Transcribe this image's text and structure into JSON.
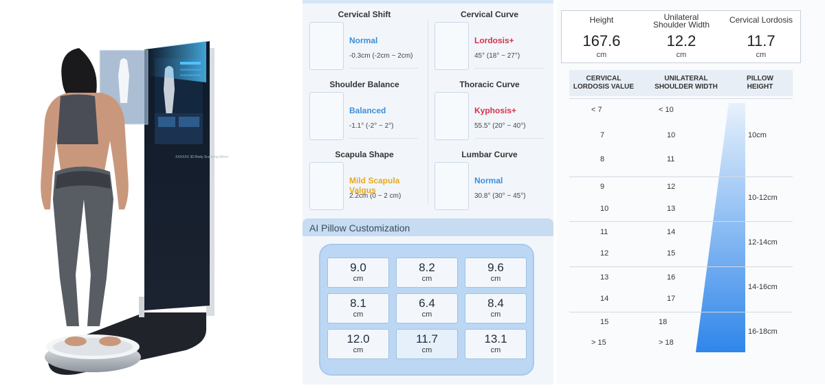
{
  "middle": {
    "metrics": [
      {
        "title": "Cervical Shift",
        "status": "Normal",
        "status_color": "#3c8ed8",
        "value": "-0.3cm  (-2cm ~ 2cm)"
      },
      {
        "title": "Cervical Curve",
        "status": "Lordosis+",
        "status_color": "#d8304a",
        "value": "45°  (18° ~ 27°)"
      },
      {
        "title": "Shoulder Balance",
        "status": "Balanced",
        "status_color": "#3c8ed8",
        "value": "-1.1°  (-2° ~ 2°)"
      },
      {
        "title": "Thoracic Curve",
        "status": "Kyphosis+",
        "status_color": "#d8304a",
        "value": "55.5°  (20° ~ 40°)"
      },
      {
        "title": "Scapula Shape",
        "status": "Mild Scapula Valgus",
        "status_color": "#e8a81c",
        "value": "2.2cm  (0 ~ 2 cm)"
      },
      {
        "title": "Lumbar Curve",
        "status": "Normal",
        "status_color": "#3c8ed8",
        "value": "30.8°  (30° ~ 45°)"
      }
    ],
    "ai_title": "AI Pillow Customization",
    "pillow": [
      {
        "n": "9.0",
        "u": "cm"
      },
      {
        "n": "8.2",
        "u": "cm"
      },
      {
        "n": "9.6",
        "u": "cm"
      },
      {
        "n": "8.1",
        "u": "cm"
      },
      {
        "n": "6.4",
        "u": "cm"
      },
      {
        "n": "8.4",
        "u": "cm"
      },
      {
        "n": "12.0",
        "u": "cm"
      },
      {
        "n": "11.7",
        "u": "cm"
      },
      {
        "n": "13.1",
        "u": "cm"
      }
    ]
  },
  "measurements": [
    {
      "label": "Height",
      "value": "167.6",
      "unit": "cm"
    },
    {
      "label": "Unilateral\nShoulder Width",
      "value": "12.2",
      "unit": "cm"
    },
    {
      "label": "Cervical Lordosis",
      "value": "11.7",
      "unit": "cm"
    }
  ],
  "table": {
    "headers": [
      "CERVICAL\nLORDOSIS VALUE",
      "UNILATERAL\nSHOULDER WIDTH",
      "PILLOW\nHEIGHT"
    ],
    "groups": [
      {
        "rows": [
          [
            "< 7",
            "< 10"
          ],
          [
            "7",
            "10"
          ],
          [
            "8",
            "11"
          ]
        ],
        "height": "10cm"
      },
      {
        "rows": [
          [
            "9",
            "12"
          ],
          [
            "10",
            "13"
          ]
        ],
        "height": "10-12cm"
      },
      {
        "rows": [
          [
            "11",
            "14"
          ],
          [
            "12",
            "15"
          ]
        ],
        "height": "12-14cm"
      },
      {
        "rows": [
          [
            "13",
            "16"
          ],
          [
            "14",
            "17"
          ]
        ],
        "height": "14-16cm"
      },
      {
        "rows": [
          [
            "15",
            "18"
          ],
          [
            "> 15",
            "> 18"
          ]
        ],
        "height": "16-18cm"
      }
    ]
  },
  "device": {
    "screen_caption": "XXXXXX 3D Body Scanning Mirror"
  }
}
